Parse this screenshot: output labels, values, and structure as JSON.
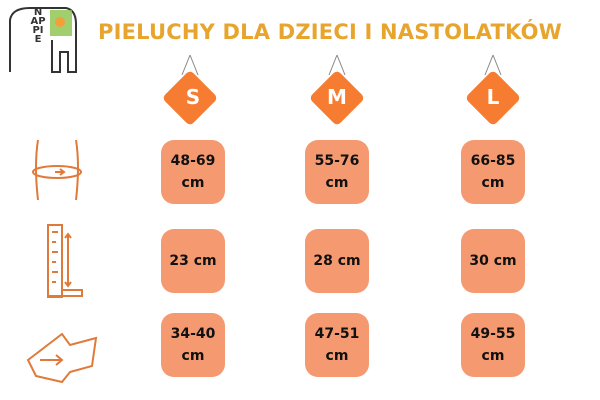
{
  "header": {
    "title": "PIELUCHY DLA DZIECI I NASTOLATKÓW",
    "logo": "NAPPIE"
  },
  "sizes": [
    "S",
    "M",
    "L"
  ],
  "table": {
    "rows": [
      [
        "48-69 cm",
        "55-76 cm",
        "66-85 cm"
      ],
      [
        "23 cm",
        "28 cm",
        "30 cm"
      ],
      [
        "34-40 cm",
        "47-51 cm",
        "49-55 cm"
      ]
    ]
  }
}
